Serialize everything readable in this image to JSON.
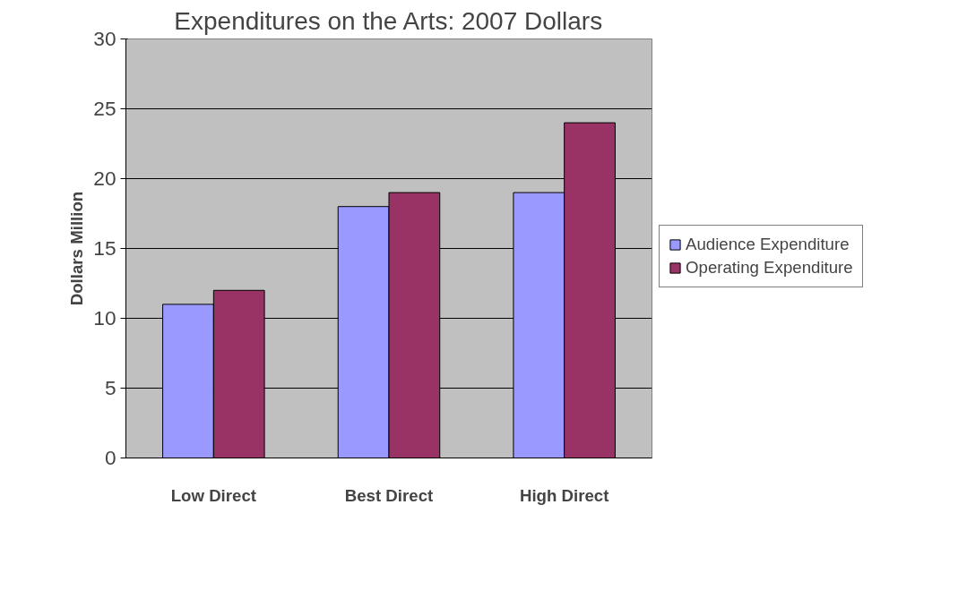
{
  "chart_data": {
    "type": "bar",
    "title": "Expenditures on the Arts: 2007 Dollars",
    "ylabel": "Dollars Million",
    "categories": [
      "Low Direct",
      "Best Direct",
      "High Direct"
    ],
    "series": [
      {
        "name": "Audience Expenditure",
        "color": "#9999ff",
        "values": [
          11,
          18,
          19
        ]
      },
      {
        "name": "Operating Expenditure",
        "color": "#993366",
        "values": [
          12,
          19,
          24
        ]
      }
    ],
    "ylim": [
      0,
      30
    ],
    "yticks": [
      0,
      5,
      10,
      15,
      20,
      25,
      30
    ],
    "grid": "y",
    "legend": "right"
  }
}
